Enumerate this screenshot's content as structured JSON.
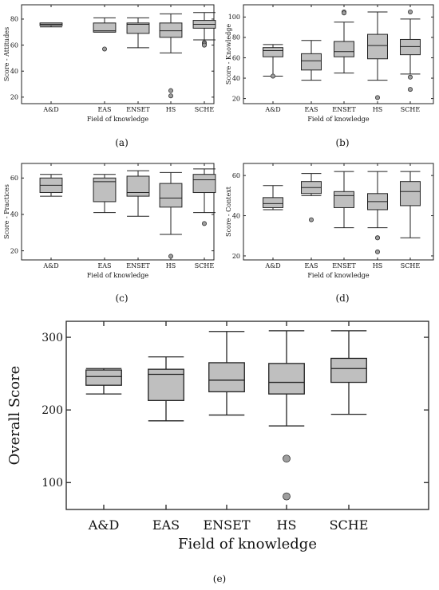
{
  "figure": {
    "captions": [
      "(a)",
      "(b)",
      "(c)",
      "(d)",
      "(e)"
    ]
  },
  "chart_data": [
    {
      "type": "boxplot",
      "xlabel": "Field of knowledge",
      "ylabel": "Score - Attitudes",
      "categories": [
        "A&D",
        "EAS",
        "ENSET",
        "HS",
        "SCHE"
      ],
      "ylim": [
        15,
        91
      ],
      "yticks": [
        20,
        40,
        60,
        80
      ],
      "caption": "(a)",
      "boxes": [
        {
          "min": 74,
          "q1": 75,
          "median": 76,
          "q3": 77,
          "max": 77,
          "outliers": []
        },
        {
          "min": 70,
          "q1": 70,
          "median": 71,
          "q3": 77,
          "max": 81,
          "outliers": [
            57
          ]
        },
        {
          "min": 58,
          "q1": 69,
          "median": 76,
          "q3": 77,
          "max": 81,
          "outliers": []
        },
        {
          "min": 54,
          "q1": 66,
          "median": 71,
          "q3": 77,
          "max": 84,
          "outliers": [
            25,
            21
          ]
        },
        {
          "min": 64,
          "q1": 73,
          "median": 76,
          "q3": 79,
          "max": 85,
          "outliers": [
            62,
            61,
            60
          ]
        }
      ]
    },
    {
      "type": "boxplot",
      "xlabel": "Field of knowledge",
      "ylabel": "Score - Knowledge",
      "categories": [
        "A&D",
        "EAS",
        "ENSET",
        "HS",
        "SCHE"
      ],
      "ylim": [
        15,
        112
      ],
      "yticks": [
        20,
        40,
        60,
        80,
        100
      ],
      "caption": "(b)",
      "boxes": [
        {
          "min": 42,
          "q1": 61,
          "median": 67,
          "q3": 70,
          "max": 73,
          "outliers": [
            42
          ]
        },
        {
          "min": 38,
          "q1": 48,
          "median": 57,
          "q3": 64,
          "max": 77,
          "outliers": []
        },
        {
          "min": 45,
          "q1": 61,
          "median": 66,
          "q3": 76,
          "max": 95,
          "outliers": [
            105,
            104
          ]
        },
        {
          "min": 38,
          "q1": 59,
          "median": 72,
          "q3": 83,
          "max": 105,
          "outliers": [
            21
          ]
        },
        {
          "min": 44,
          "q1": 63,
          "median": 71,
          "q3": 78,
          "max": 98,
          "outliers": [
            105,
            41,
            29
          ]
        }
      ]
    },
    {
      "type": "boxplot",
      "xlabel": "Field of knowledge",
      "ylabel": "Score - Practices",
      "categories": [
        "A&D",
        "EAS",
        "ENSET",
        "HS",
        "SCHE"
      ],
      "ylim": [
        15,
        68
      ],
      "yticks": [
        20,
        40,
        60
      ],
      "caption": "(c)",
      "boxes": [
        {
          "min": 50,
          "q1": 52,
          "median": 56,
          "q3": 60,
          "max": 62,
          "outliers": []
        },
        {
          "min": 41,
          "q1": 47,
          "median": 58,
          "q3": 60,
          "max": 62,
          "outliers": []
        },
        {
          "min": 39,
          "q1": 50,
          "median": 52,
          "q3": 61,
          "max": 64,
          "outliers": []
        },
        {
          "min": 29,
          "q1": 44,
          "median": 49,
          "q3": 57,
          "max": 63,
          "outliers": [
            17
          ]
        },
        {
          "min": 41,
          "q1": 52,
          "median": 59,
          "q3": 62,
          "max": 65,
          "outliers": [
            35
          ]
        }
      ]
    },
    {
      "type": "boxplot",
      "xlabel": "Field of knowledge",
      "ylabel": "Score - Context",
      "categories": [
        "A&D",
        "EAS",
        "ENSET",
        "HS",
        "SCHE"
      ],
      "ylim": [
        18,
        66
      ],
      "yticks": [
        20,
        40,
        60
      ],
      "caption": "(d)",
      "boxes": [
        {
          "min": 43,
          "q1": 44,
          "median": 46,
          "q3": 49,
          "max": 55,
          "outliers": []
        },
        {
          "min": 50,
          "q1": 51,
          "median": 54,
          "q3": 57,
          "max": 61,
          "outliers": [
            38
          ]
        },
        {
          "min": 34,
          "q1": 44,
          "median": 50,
          "q3": 52,
          "max": 62,
          "outliers": []
        },
        {
          "min": 34,
          "q1": 43,
          "median": 47,
          "q3": 51,
          "max": 62,
          "outliers": [
            29,
            29,
            22
          ]
        },
        {
          "min": 29,
          "q1": 45,
          "median": 52,
          "q3": 57,
          "max": 62,
          "outliers": []
        }
      ]
    },
    {
      "type": "boxplot",
      "xlabel": "Field of knowledge",
      "ylabel": "Overall Score",
      "categories": [
        "A&D",
        "EAS",
        "ENSET",
        "HS",
        "SCHE"
      ],
      "ylim": [
        63,
        322
      ],
      "yticks": [
        100,
        200,
        300
      ],
      "caption": "(e)",
      "boxes": [
        {
          "min": 222,
          "q1": 234,
          "median": 246,
          "q3": 255,
          "max": 257,
          "outliers": []
        },
        {
          "min": 185,
          "q1": 213,
          "median": 249,
          "q3": 256,
          "max": 273,
          "outliers": []
        },
        {
          "min": 193,
          "q1": 225,
          "median": 241,
          "q3": 265,
          "max": 308,
          "outliers": []
        },
        {
          "min": 178,
          "q1": 222,
          "median": 238,
          "q3": 264,
          "max": 309,
          "outliers": [
            133,
            81
          ]
        },
        {
          "min": 194,
          "q1": 238,
          "median": 257,
          "q3": 271,
          "max": 309,
          "outliers": []
        }
      ]
    }
  ]
}
